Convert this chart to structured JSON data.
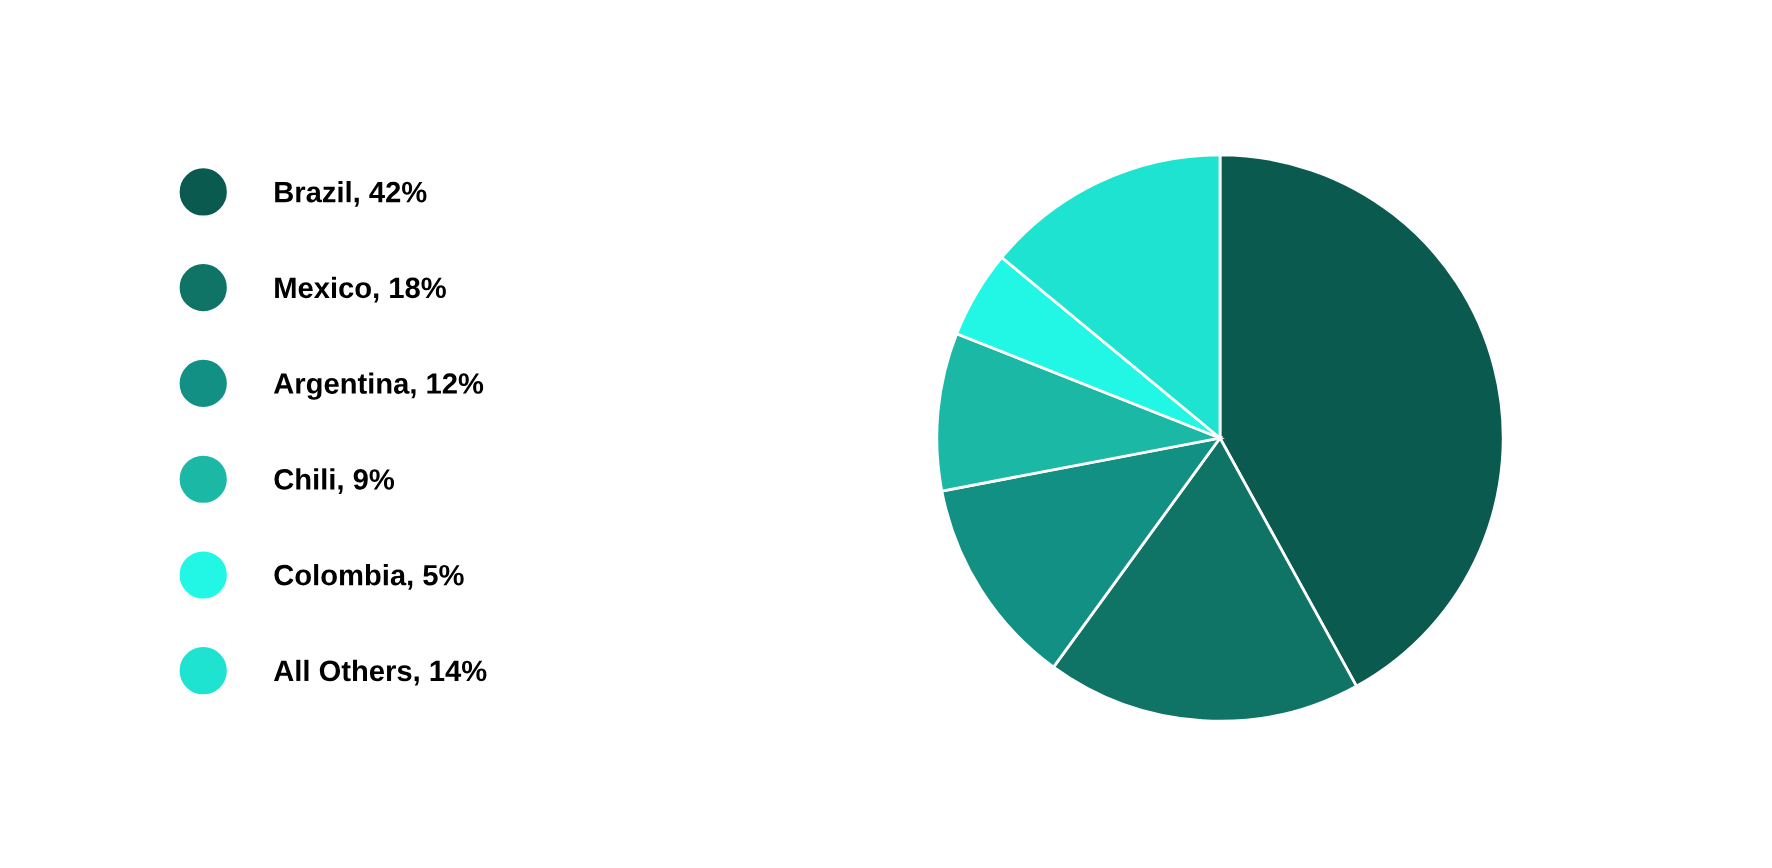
{
  "chart_data": {
    "type": "pie",
    "categories": [
      "Brazil, 42%",
      "Mexico, 18%",
      "Argentina, 12%",
      "Chili, 9%",
      "Colombia, 5%",
      "All Others, 14%"
    ],
    "values": [
      42,
      18,
      12,
      9,
      5,
      14
    ],
    "colors": [
      "#0b5a4f",
      "#0f7366",
      "#139084",
      "#1bb8a6",
      "#22f7e6",
      "#1ee3d0"
    ],
    "legend": "left"
  }
}
